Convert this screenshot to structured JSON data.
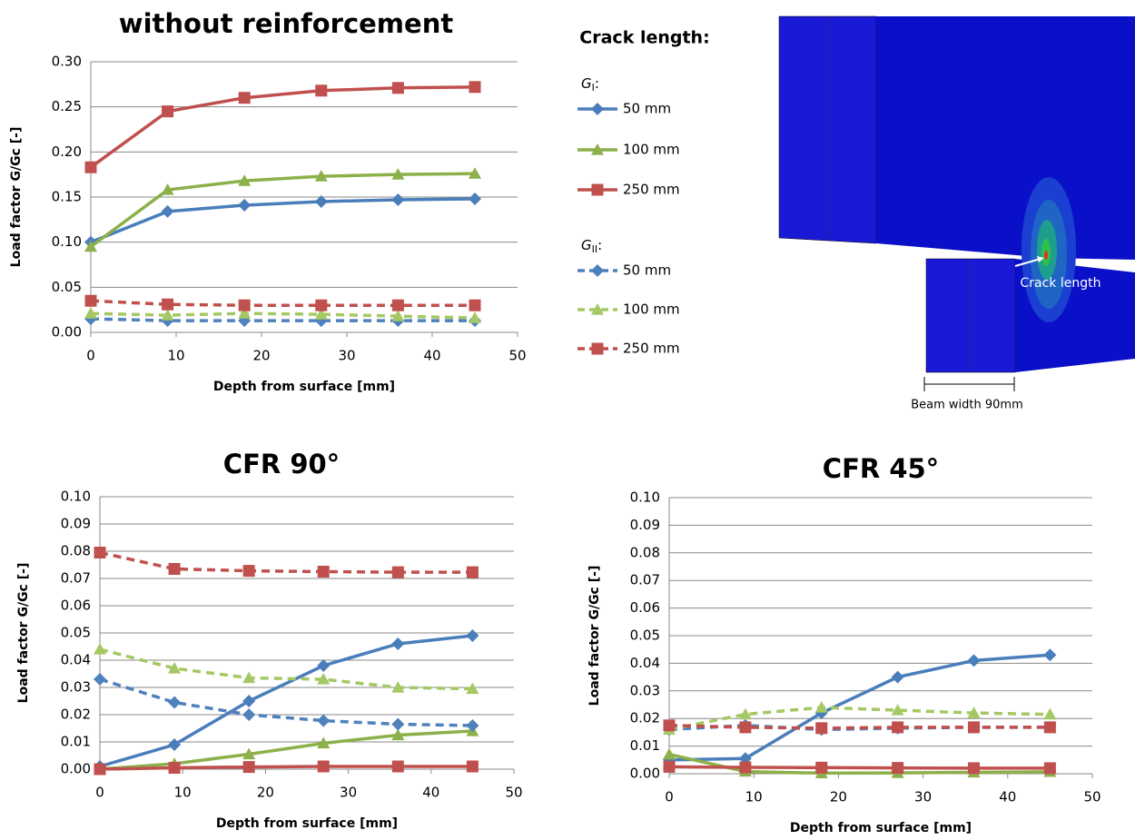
{
  "legend": {
    "title": "Crack length:",
    "groups": [
      {
        "symbol": "G",
        "subscript": "I",
        "tail": ":"
      },
      {
        "symbol": "G",
        "subscript": "II",
        "tail": ":"
      }
    ]
  },
  "image": {
    "crack_label": "Crack length",
    "width_label": "Beam width 90mm"
  },
  "chart_data": [
    {
      "type": "line",
      "title": "without reinforcement",
      "x_label": "Depth from surface [mm]",
      "y_label": "Load factor G/Gc [-]",
      "x": [
        0,
        9,
        18,
        27,
        36,
        45
      ],
      "xlim": [
        0,
        50
      ],
      "xticks": [
        0,
        10,
        20,
        30,
        40,
        50
      ],
      "ylim": [
        0,
        0.3
      ],
      "yticks": [
        {
          "value": 0,
          "label": "0.00"
        },
        {
          "value": 0.05,
          "label": "0.05"
        },
        {
          "value": 0.1,
          "label": "0.10"
        },
        {
          "value": 0.15,
          "label": "0.15"
        },
        {
          "value": 0.2,
          "label": "0.20"
        },
        {
          "value": 0.25,
          "label": "0.25"
        },
        {
          "value": 0.3,
          "label": "0.30"
        }
      ],
      "grid": true,
      "series": [
        {
          "name": "50 mm",
          "group": 0,
          "color": "#4a7ebb",
          "marker": "diamond",
          "dashed": false,
          "values": [
            0.1,
            0.134,
            0.141,
            0.145,
            0.147,
            0.148
          ]
        },
        {
          "name": "100 mm",
          "group": 0,
          "color": "#8cb04a",
          "marker": "triangle",
          "dashed": false,
          "values": [
            0.095,
            0.158,
            0.168,
            0.173,
            0.175,
            0.176
          ]
        },
        {
          "name": "250 mm",
          "group": 0,
          "color": "#c0504d",
          "marker": "square",
          "dashed": false,
          "values": [
            0.183,
            0.245,
            0.26,
            0.268,
            0.271,
            0.272
          ]
        },
        {
          "name": "50 mm",
          "group": 1,
          "color": "#4f81bd",
          "marker": "diamond",
          "dashed": true,
          "values": [
            0.015,
            0.013,
            0.013,
            0.013,
            0.013,
            0.013
          ]
        },
        {
          "name": "100 mm",
          "group": 1,
          "color": "#a4c863",
          "marker": "triangle",
          "dashed": true,
          "values": [
            0.021,
            0.019,
            0.021,
            0.02,
            0.018,
            0.016
          ]
        },
        {
          "name": "250 mm",
          "group": 1,
          "color": "#c0504d",
          "marker": "square",
          "dashed": true,
          "values": [
            0.035,
            0.031,
            0.03,
            0.03,
            0.03,
            0.03
          ]
        }
      ]
    },
    {
      "type": "line",
      "title": "CFR 90°",
      "x_label": "Depth from surface [mm]",
      "y_label": "Load factor G/Gc [-]",
      "x": [
        0,
        9,
        18,
        27,
        36,
        45
      ],
      "xlim": [
        0,
        50
      ],
      "xticks": [
        0,
        10,
        20,
        30,
        40,
        50
      ],
      "ylim": [
        0,
        0.1
      ],
      "yticks": [
        {
          "value": 0,
          "label": "0.00"
        },
        {
          "value": 0.01,
          "label": "0.01"
        },
        {
          "value": 0.02,
          "label": "0.02"
        },
        {
          "value": 0.03,
          "label": "0.03"
        },
        {
          "value": 0.04,
          "label": "0.04"
        },
        {
          "value": 0.05,
          "label": "0.05"
        },
        {
          "value": 0.06,
          "label": "0.06"
        },
        {
          "value": 0.07,
          "label": "0.07"
        },
        {
          "value": 0.08,
          "label": "0.08"
        },
        {
          "value": 0.09,
          "label": "0.09"
        },
        {
          "value": 0.1,
          "label": "0.10"
        }
      ],
      "grid": true,
      "series": [
        {
          "color": "#4a7ebb",
          "marker": "diamond",
          "dashed": false,
          "values": [
            0.001,
            0.009,
            0.025,
            0.038,
            0.046,
            0.049
          ]
        },
        {
          "color": "#8cb04a",
          "marker": "triangle",
          "dashed": false,
          "values": [
            0,
            0.002,
            0.0055,
            0.0095,
            0.0125,
            0.014
          ]
        },
        {
          "color": "#c0504d",
          "marker": "square",
          "dashed": false,
          "values": [
            0,
            0.0005,
            0.0008,
            0.001,
            0.001,
            0.001
          ]
        },
        {
          "color": "#4f81bd",
          "marker": "diamond",
          "dashed": true,
          "values": [
            0.033,
            0.0245,
            0.02,
            0.0178,
            0.0165,
            0.016
          ]
        },
        {
          "color": "#a4c863",
          "marker": "triangle",
          "dashed": true,
          "values": [
            0.044,
            0.037,
            0.0335,
            0.033,
            0.03,
            0.0295
          ]
        },
        {
          "color": "#c0504d",
          "marker": "square",
          "dashed": true,
          "values": [
            0.0795,
            0.0735,
            0.0728,
            0.0725,
            0.0723,
            0.0723
          ]
        }
      ]
    },
    {
      "type": "line",
      "title": "CFR 45°",
      "x_label": "Depth from surface [mm]",
      "y_label": "Load factor G/Gc [-]",
      "x": [
        0,
        9,
        18,
        27,
        36,
        45
      ],
      "xlim": [
        0,
        50
      ],
      "xticks": [
        0,
        10,
        20,
        30,
        40,
        50
      ],
      "ylim": [
        0,
        0.1
      ],
      "yticks": [
        {
          "value": 0,
          "label": "0.00"
        },
        {
          "value": 0.01,
          "label": "0.01"
        },
        {
          "value": 0.02,
          "label": "0.02"
        },
        {
          "value": 0.03,
          "label": "0.03"
        },
        {
          "value": 0.04,
          "label": "0.04"
        },
        {
          "value": 0.05,
          "label": "0.05"
        },
        {
          "value": 0.06,
          "label": "0.06"
        },
        {
          "value": 0.07,
          "label": "0.07"
        },
        {
          "value": 0.08,
          "label": "0.08"
        },
        {
          "value": 0.09,
          "label": "0.09"
        },
        {
          "value": 0.1,
          "label": "0.10"
        }
      ],
      "grid": true,
      "series": [
        {
          "color": "#4a7ebb",
          "marker": "diamond",
          "dashed": false,
          "values": [
            0.005,
            0.0055,
            0.022,
            0.035,
            0.041,
            0.043
          ]
        },
        {
          "color": "#8cb04a",
          "marker": "triangle",
          "dashed": false,
          "values": [
            0.007,
            0.0008,
            0.0002,
            0.0003,
            0.0005,
            0.0007
          ]
        },
        {
          "color": "#c0504d",
          "marker": "square",
          "dashed": false,
          "values": [
            0.0025,
            0.0023,
            0.0022,
            0.0021,
            0.002,
            0.002
          ]
        },
        {
          "color": "#4f81bd",
          "marker": "diamond",
          "dashed": true,
          "values": [
            0.016,
            0.0175,
            0.016,
            0.0165,
            0.0168,
            0.0168
          ]
        },
        {
          "color": "#a4c863",
          "marker": "triangle",
          "dashed": true,
          "values": [
            0.016,
            0.0215,
            0.024,
            0.023,
            0.022,
            0.0215
          ]
        },
        {
          "color": "#c0504d",
          "marker": "square",
          "dashed": true,
          "values": [
            0.0175,
            0.0168,
            0.0165,
            0.0168,
            0.0168,
            0.0168
          ]
        }
      ]
    }
  ]
}
